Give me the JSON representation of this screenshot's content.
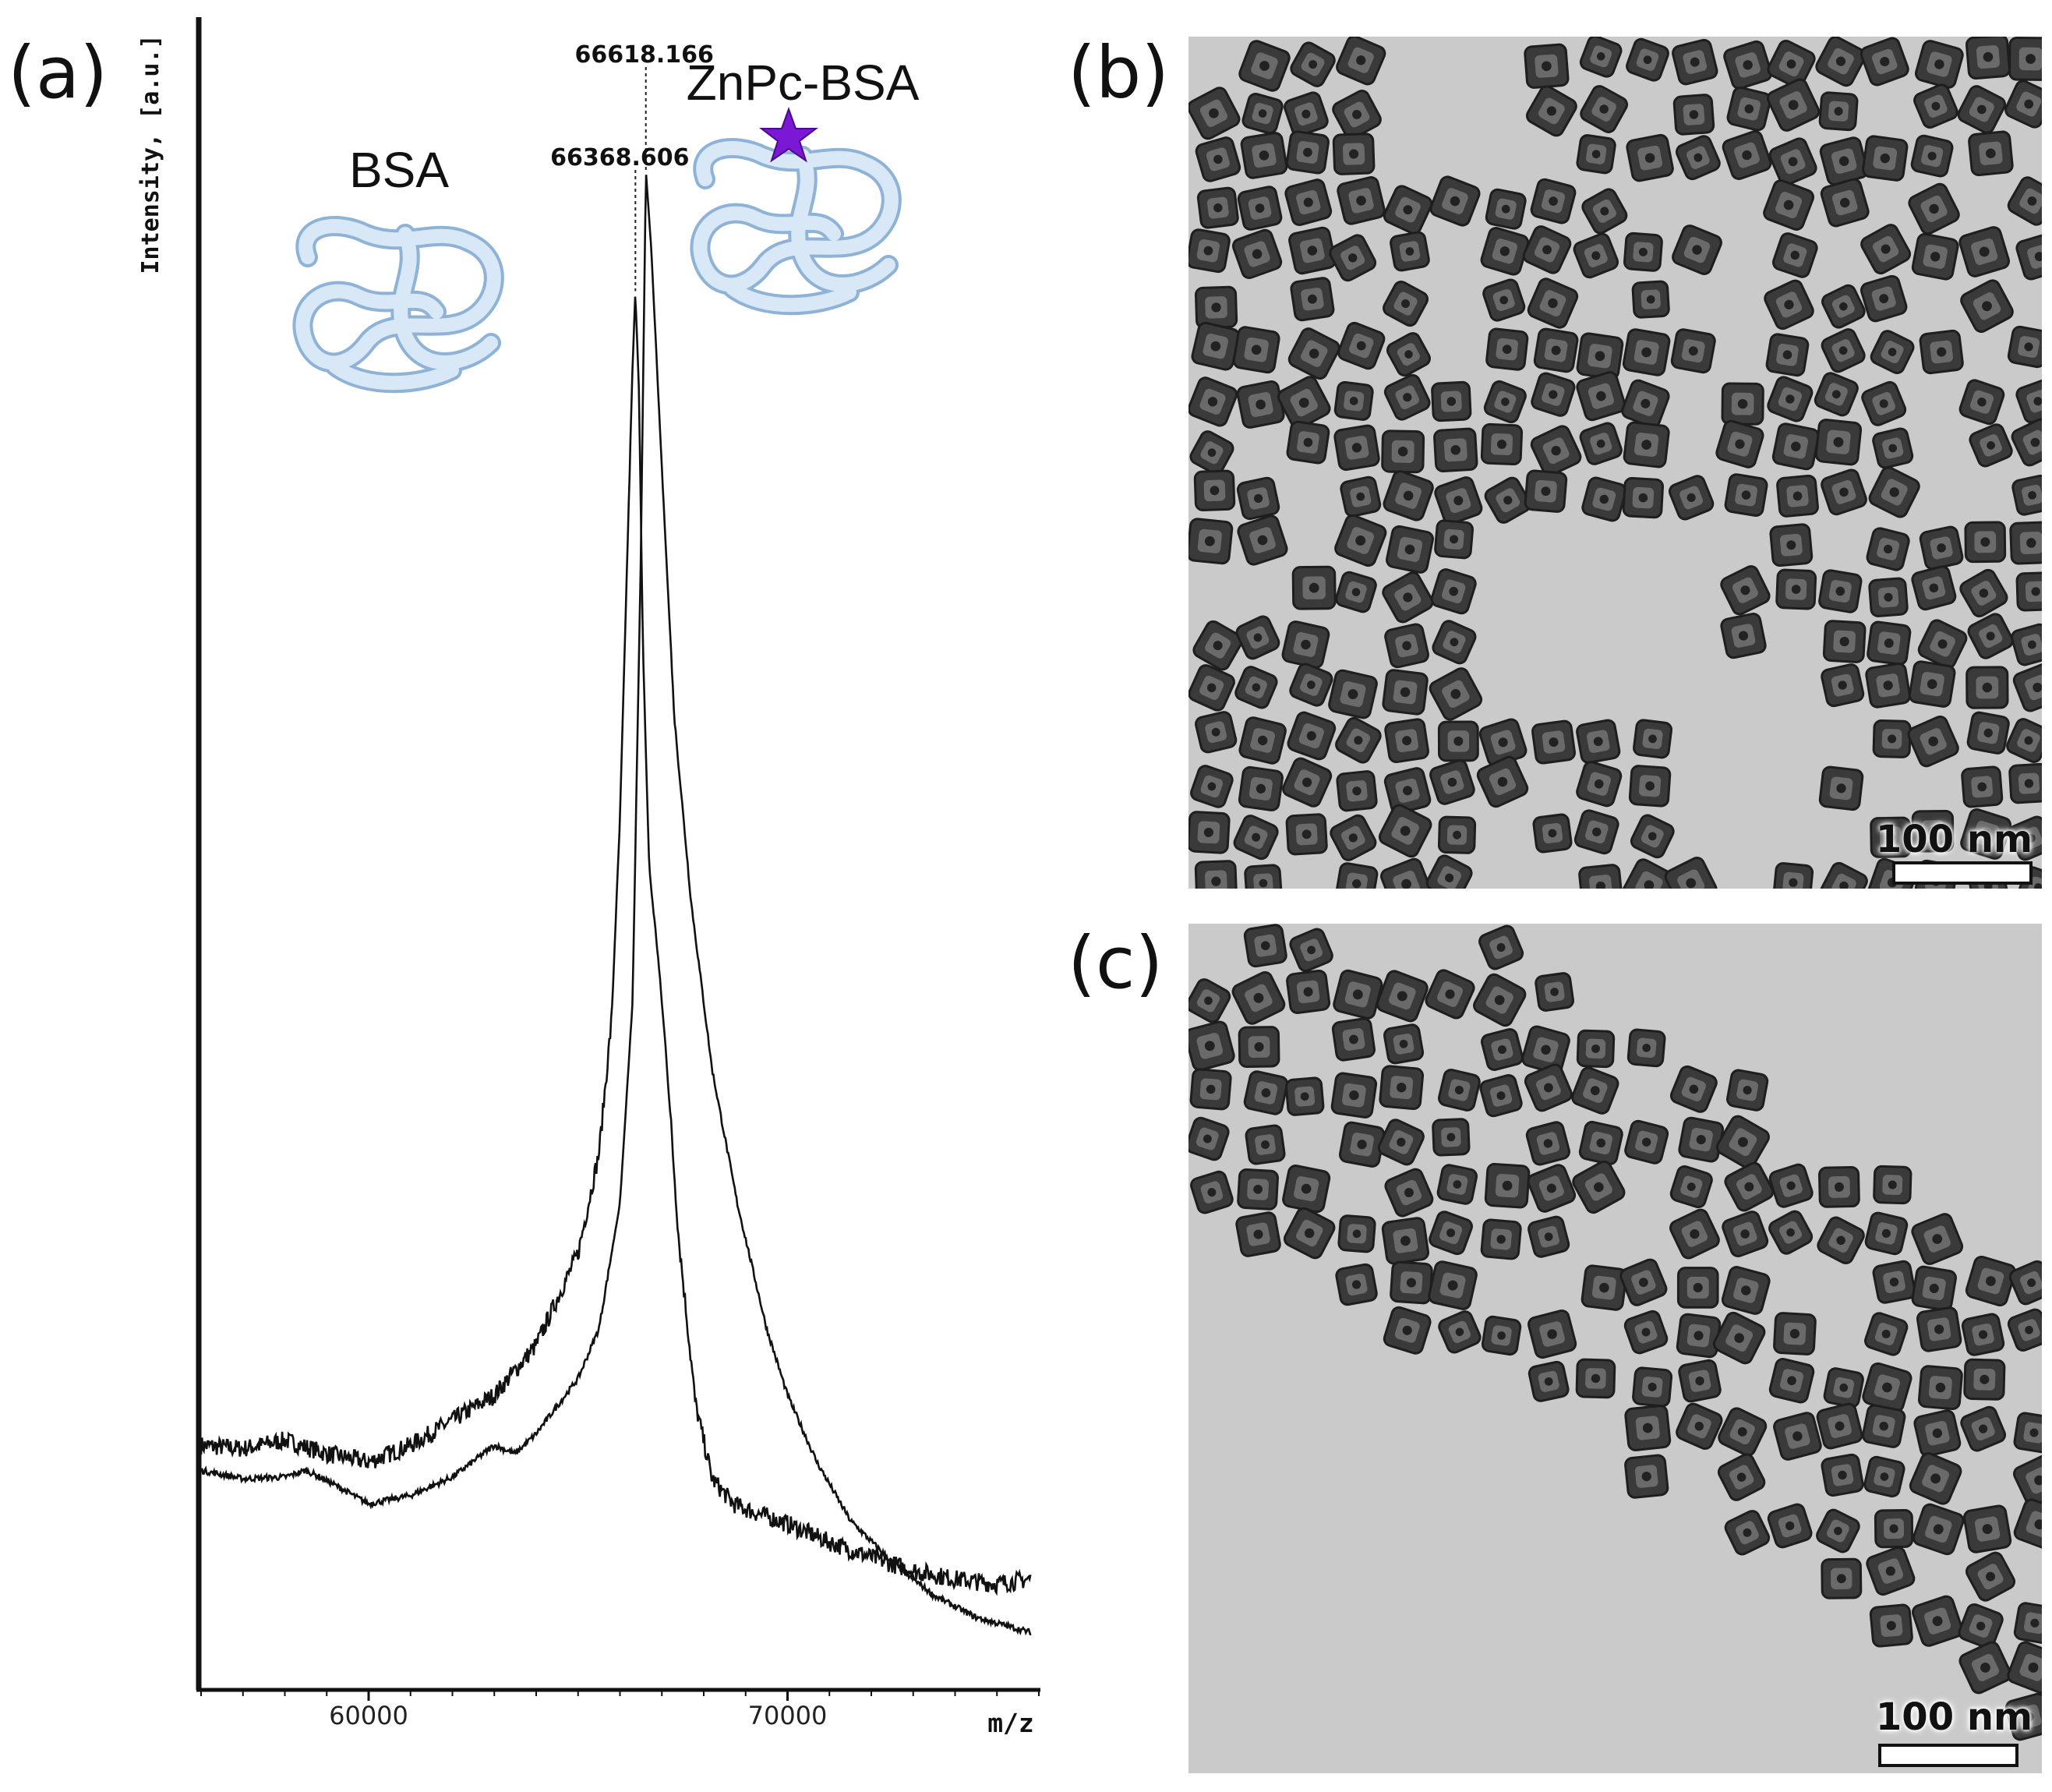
{
  "panels": {
    "a": "(a)",
    "b": "(b)",
    "c": "(c)"
  },
  "scale_label": "100 nm",
  "chart_data": {
    "type": "line",
    "xlabel": "m/z",
    "ylabel": "Intensity, [a.u.]",
    "xlim": [
      56000,
      76000
    ],
    "ylim": [
      0,
      100
    ],
    "xticks": [
      60000,
      70000
    ],
    "x_tick_labels": [
      "60000",
      "70000"
    ],
    "grid": false,
    "annotations": [
      {
        "text": "BSA",
        "kind": "species-label"
      },
      {
        "text": "ZnPc-BSA",
        "kind": "species-label"
      },
      {
        "text": "66368.606",
        "x": 66368.606,
        "y": 83.6,
        "kind": "peak-label"
      },
      {
        "text": "66618.166",
        "x": 66618.166,
        "y": 90.8,
        "kind": "peak-label"
      }
    ],
    "series": [
      {
        "color": "#111111",
        "x": [
          56000,
          57000,
          58000,
          59000,
          60000,
          61000,
          62000,
          63000,
          64000,
          65000,
          65500,
          65800,
          66000,
          66200,
          66300,
          66368.606,
          66450,
          66550,
          66700,
          66900,
          67100,
          67400,
          67800,
          68200,
          68700,
          69200,
          70000,
          71000,
          72000,
          73000,
          74000,
          75000,
          75800
        ],
        "y": [
          14.5,
          14.3,
          14.8,
          14.0,
          13.5,
          14.5,
          16.0,
          17.5,
          20.5,
          26.0,
          32.0,
          40.0,
          52.0,
          70.0,
          79.0,
          83.6,
          78.0,
          62.0,
          49.0,
          44.0,
          38.0,
          27.0,
          17.0,
          12.5,
          11.0,
          10.5,
          9.8,
          8.7,
          7.8,
          7.0,
          6.5,
          6.2,
          6.5
        ]
      },
      {
        "color": "#111111",
        "x": [
          56000,
          57000,
          58000,
          58500,
          59000,
          60000,
          61000,
          62000,
          63000,
          63500,
          64000,
          65000,
          65500,
          66000,
          66300,
          66500,
          66618.166,
          66750,
          67000,
          67300,
          67700,
          68200,
          68800,
          69500,
          70000,
          70700,
          71500,
          72500,
          73500,
          74500,
          75800
        ],
        "y": [
          13.0,
          12.5,
          12.6,
          13.0,
          12.4,
          11.0,
          11.5,
          12.6,
          14.5,
          14.0,
          15.2,
          18.5,
          21.5,
          29.0,
          41.0,
          68.0,
          90.8,
          86.0,
          73.0,
          58.0,
          47.0,
          37.0,
          29.0,
          21.5,
          17.5,
          13.5,
          10.0,
          7.5,
          5.5,
          4.2,
          3.3
        ]
      }
    ]
  }
}
